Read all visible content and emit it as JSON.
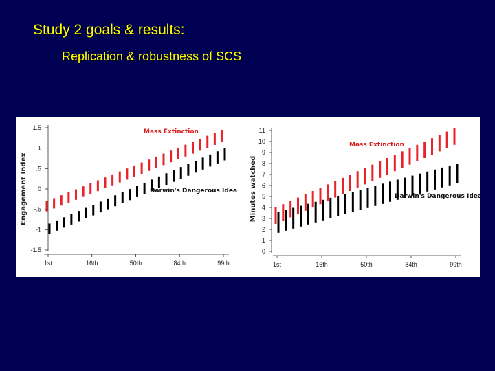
{
  "slide": {
    "title": "Study 2 goals & results:",
    "subtitle": "Replication & robustness of SCS"
  },
  "colors": {
    "background": "#000052",
    "title_text": "#ffff00",
    "series_mass_extinction": "#e8232a",
    "series_darwins": "#000000"
  },
  "chart_data": [
    {
      "type": "range-bar",
      "title": "",
      "xlabel": "",
      "ylabel": "Engagement Index",
      "x_tick_labels": [
        "1st",
        "16th",
        "50th",
        "84th",
        "99th"
      ],
      "x_range": [
        1,
        25
      ],
      "y_ticks": [
        1.5,
        1,
        0.5,
        0,
        -0.5,
        -1,
        -1.5
      ],
      "y_tick_labels": [
        "1.5",
        "1",
        ".5",
        "0",
        "-.5",
        "-1",
        "-1.5"
      ],
      "ylim": [
        -1.5,
        1.5
      ],
      "grid": false,
      "series": [
        {
          "name": "Mass Extinction",
          "color": "#e8232a",
          "low_start": -0.55,
          "low_end": 1.15,
          "high_start": -0.3,
          "high_end": 1.45,
          "n_bars": 25
        },
        {
          "name": "Darwin's Dangerous Idea",
          "color": "#000000",
          "low_start": -1.1,
          "low_end": 0.7,
          "high_start": -0.85,
          "high_end": 1.0,
          "n_bars": 25
        }
      ]
    },
    {
      "type": "range-bar",
      "title": "",
      "xlabel": "",
      "ylabel": "Minutes watched",
      "x_tick_labels": [
        "1st",
        "16th",
        "50th",
        "84th",
        "99th"
      ],
      "x_range": [
        1,
        25
      ],
      "y_ticks": [
        11,
        10,
        9,
        8,
        7,
        6,
        5,
        4,
        3,
        2,
        1,
        0
      ],
      "y_tick_labels": [
        "11",
        "10",
        "9",
        "8",
        "7",
        "6",
        "5",
        "4",
        "3",
        "2",
        "1",
        "0"
      ],
      "ylim": [
        0,
        11
      ],
      "grid": false,
      "series": [
        {
          "name": "Mass Extinction",
          "color": "#e8232a",
          "low_start": 2.5,
          "low_end": 9.7,
          "high_start": 4.0,
          "high_end": 11.2,
          "n_bars": 25
        },
        {
          "name": "Darwin's Dangerous Idea",
          "color": "#000000",
          "low_start": 1.7,
          "low_end": 6.2,
          "high_start": 3.6,
          "high_end": 8.0,
          "n_bars": 25
        }
      ]
    }
  ]
}
